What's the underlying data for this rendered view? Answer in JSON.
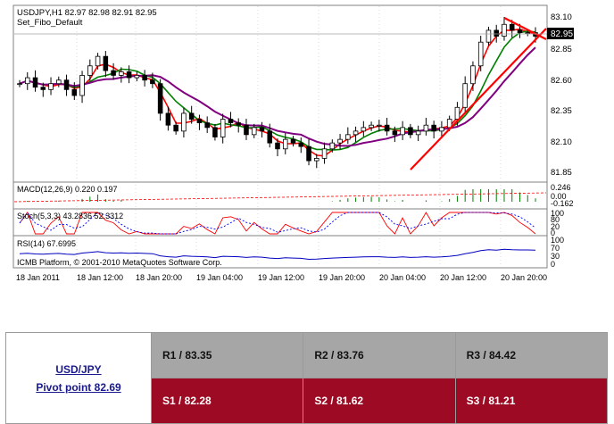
{
  "chart": {
    "symbol_line": "USDJPY,H1  82.97 82.98 82.91 82.95",
    "template": "Set_Fibo_Default",
    "current_price": "82.95",
    "price_ticks": [
      "83.10",
      "82.85",
      "82.60",
      "82.35",
      "82.10",
      "81.85"
    ],
    "time_ticks": [
      "18 Jan 2011",
      "18 Jan 12:00",
      "18 Jan 20:00",
      "19 Jan 04:00",
      "19 Jan 12:00",
      "19 Jan 20:00",
      "20 Jan 04:00",
      "20 Jan 12:00",
      "20 Jan 20:00"
    ],
    "copyright": "ICMB Platform, © 2001-2010 MetaQuotes Software Corp.",
    "macd": {
      "label": "MACD(12,26,9) 0.220 0.197",
      "ticks": [
        "0.246",
        "0.00",
        "-0.162"
      ]
    },
    "stoch": {
      "label": "Stoch(5,3,3) 43.2836 52.3312",
      "ticks": [
        "100",
        "80",
        "20",
        "0"
      ]
    },
    "rsi": {
      "label": "RSI(14) 67.6995",
      "ticks": [
        "100",
        "70",
        "30",
        "0"
      ]
    },
    "colors": {
      "bg": "#ffffff",
      "candle": "#000000",
      "ma_fast": "#ff0000",
      "ma_mid": "#008000",
      "ma_slow": "#800080",
      "trend": "#ff0000",
      "grid": "#c0c0c0"
    }
  },
  "chart_data": {
    "type": "candlestick",
    "ylim": [
      81.75,
      83.18
    ],
    "x": [
      "18 Jan 2011",
      "18 Jan 12:00",
      "18 Jan 20:00",
      "19 Jan 04:00",
      "19 Jan 12:00",
      "19 Jan 20:00",
      "20 Jan 04:00",
      "20 Jan 12:00",
      "20 Jan 20:00"
    ],
    "close_path": [
      82.55,
      82.6,
      82.52,
      82.5,
      82.55,
      82.58,
      82.5,
      82.45,
      82.62,
      82.7,
      82.78,
      82.66,
      82.62,
      82.65,
      82.6,
      82.62,
      82.58,
      82.55,
      82.3,
      82.2,
      82.15,
      82.3,
      82.25,
      82.22,
      82.18,
      82.1,
      82.25,
      82.22,
      82.2,
      82.12,
      82.18,
      82.15,
      82.05,
      82.0,
      82.08,
      82.05,
      82.02,
      81.9,
      81.92,
      82.0,
      82.05,
      82.08,
      82.12,
      82.15,
      82.18,
      82.2,
      82.2,
      82.15,
      82.12,
      82.18,
      82.12,
      82.15,
      82.2,
      82.15,
      82.18,
      82.25,
      82.35,
      82.55,
      82.7,
      82.9,
      83.0,
      82.95,
      83.05,
      83.0,
      82.98,
      82.98,
      82.95
    ]
  },
  "pivot": {
    "pair": "USD/JPY",
    "pivot_point": "Pivot point 82.69",
    "r1": "R1 / 83.35",
    "r2": "R2 / 83.76",
    "r3": "R3 / 84.42",
    "s1": "S1 / 82.28",
    "s2": "S2 / 81.62",
    "s3": "S3 / 81.21"
  }
}
